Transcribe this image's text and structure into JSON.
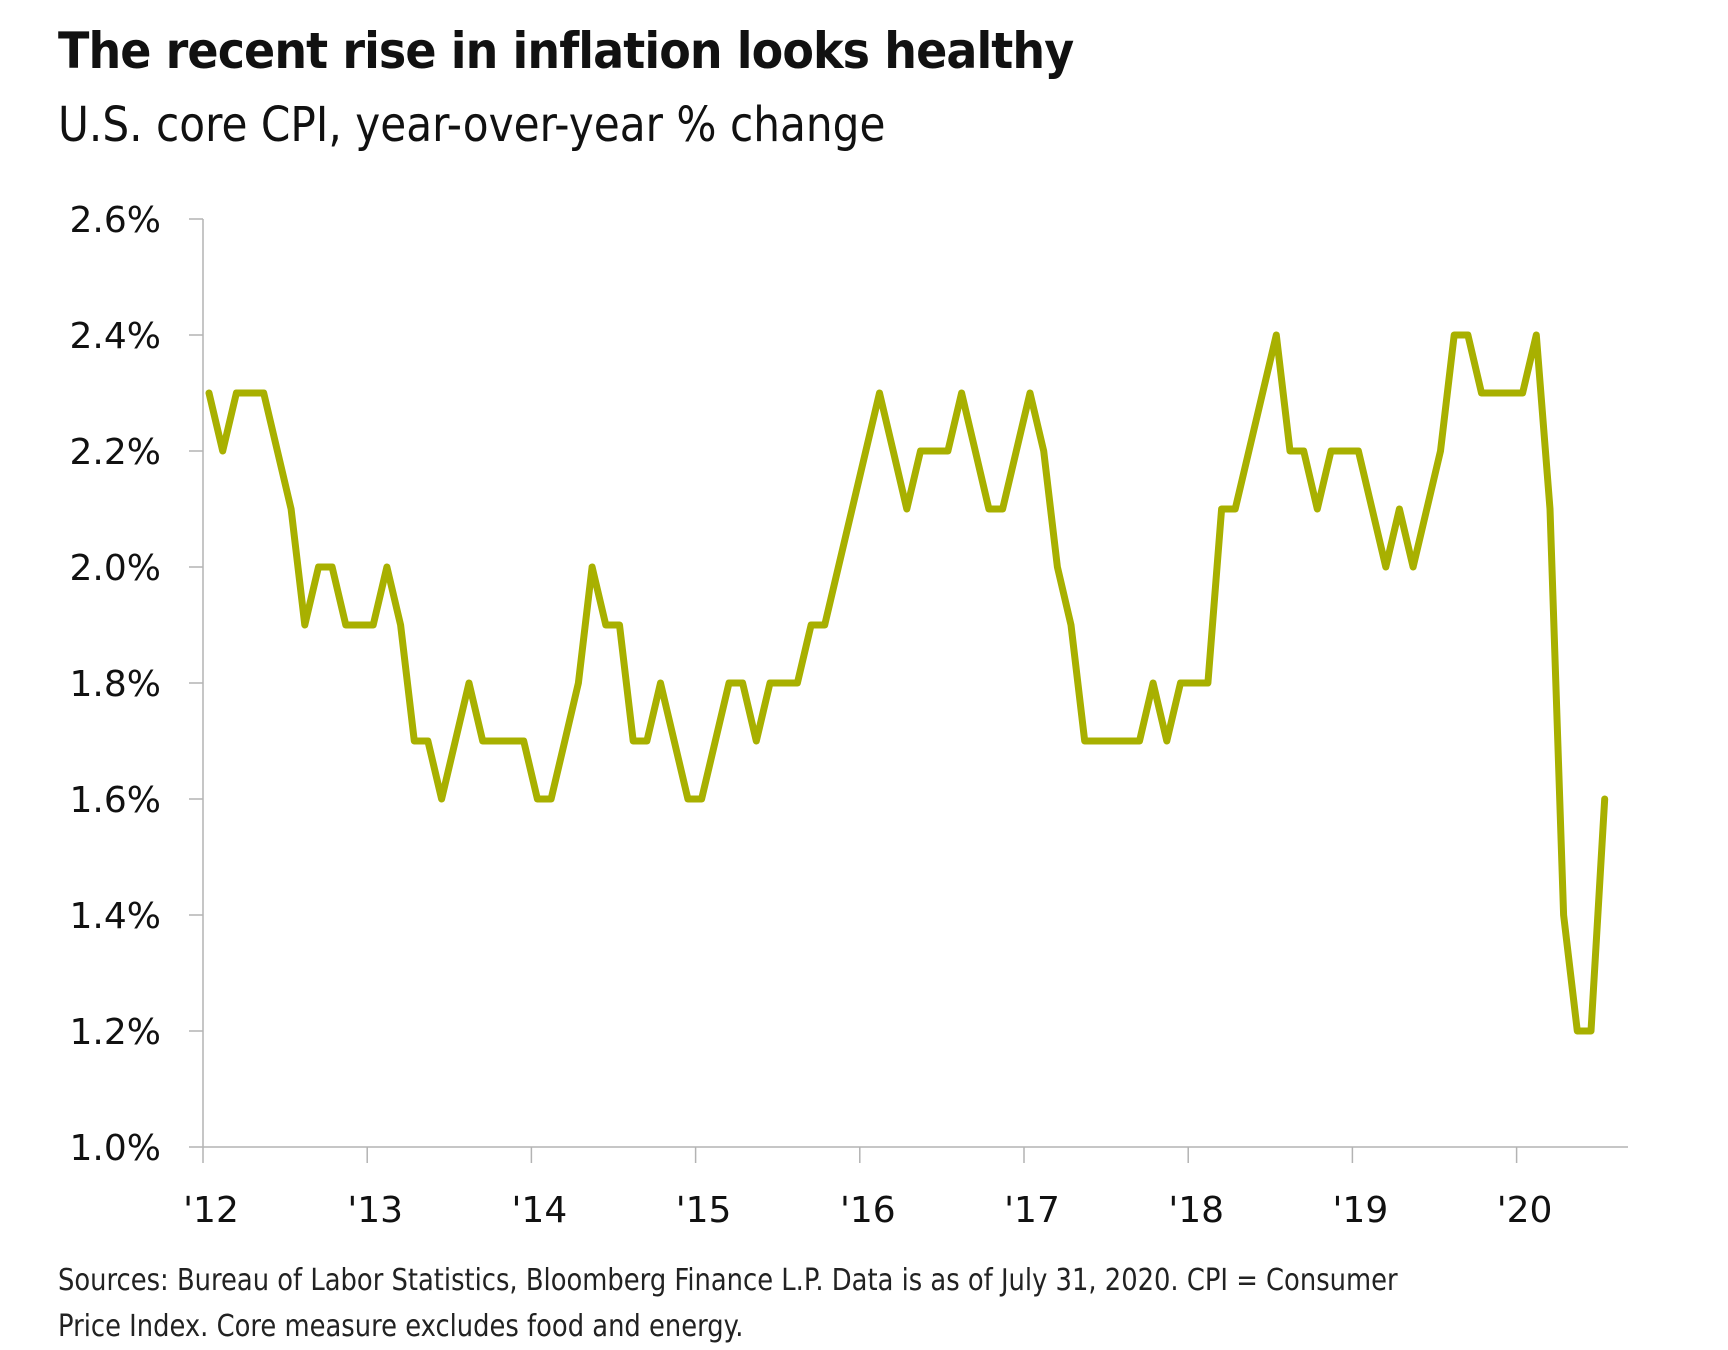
{
  "title": "The recent rise in inflation looks healthy",
  "subtitle": "U.S. core CPI, year-over-year % change",
  "source_note": "Sources: Bureau of Labor Statistics, Bloomberg Finance L.P. Data is as of July 31, 2020. CPI = Consumer Price Index. Core measure excludes food and energy.",
  "colors": {
    "line": "#a8b000",
    "axis": "#b3b3b3",
    "text": "#111111"
  },
  "chart_data": {
    "type": "line",
    "title": "The recent rise in inflation looks healthy",
    "subtitle": "U.S. core CPI, year-over-year % change",
    "xlabel": "",
    "ylabel": "",
    "ylim": [
      1.0,
      2.6
    ],
    "yticks": [
      1.0,
      1.2,
      1.4,
      1.6,
      1.8,
      2.0,
      2.2,
      2.4,
      2.6
    ],
    "ytick_labels": [
      "1.0%",
      "1.2%",
      "1.4%",
      "1.6%",
      "1.8%",
      "2.0%",
      "2.2%",
      "2.4%",
      "2.6%"
    ],
    "xtick_labels": [
      "'12",
      "'13",
      "'14",
      "'15",
      "'16",
      "'17",
      "'18",
      "'19",
      "'20"
    ],
    "x_start": "Jan 2012",
    "x_frequency": "monthly",
    "grid": false,
    "legend": "none",
    "series": [
      {
        "name": "U.S. core CPI YoY %",
        "values": [
          2.3,
          2.2,
          2.3,
          2.3,
          2.3,
          2.2,
          2.1,
          1.9,
          2.0,
          2.0,
          1.9,
          1.9,
          1.9,
          2.0,
          1.9,
          1.7,
          1.7,
          1.6,
          1.7,
          1.8,
          1.7,
          1.7,
          1.7,
          1.7,
          1.6,
          1.6,
          1.7,
          1.8,
          2.0,
          1.9,
          1.9,
          1.7,
          1.7,
          1.8,
          1.7,
          1.6,
          1.6,
          1.7,
          1.8,
          1.8,
          1.7,
          1.8,
          1.8,
          1.8,
          1.9,
          1.9,
          2.0,
          2.1,
          2.2,
          2.3,
          2.2,
          2.1,
          2.2,
          2.2,
          2.2,
          2.3,
          2.2,
          2.1,
          2.1,
          2.2,
          2.3,
          2.2,
          2.0,
          1.9,
          1.7,
          1.7,
          1.7,
          1.7,
          1.7,
          1.8,
          1.7,
          1.8,
          1.8,
          1.8,
          2.1,
          2.1,
          2.2,
          2.3,
          2.4,
          2.2,
          2.2,
          2.1,
          2.2,
          2.2,
          2.2,
          2.1,
          2.0,
          2.1,
          2.0,
          2.1,
          2.2,
          2.4,
          2.4,
          2.3,
          2.3,
          2.3,
          2.3,
          2.4,
          2.1,
          1.4,
          1.2,
          1.2,
          1.6
        ]
      }
    ]
  }
}
